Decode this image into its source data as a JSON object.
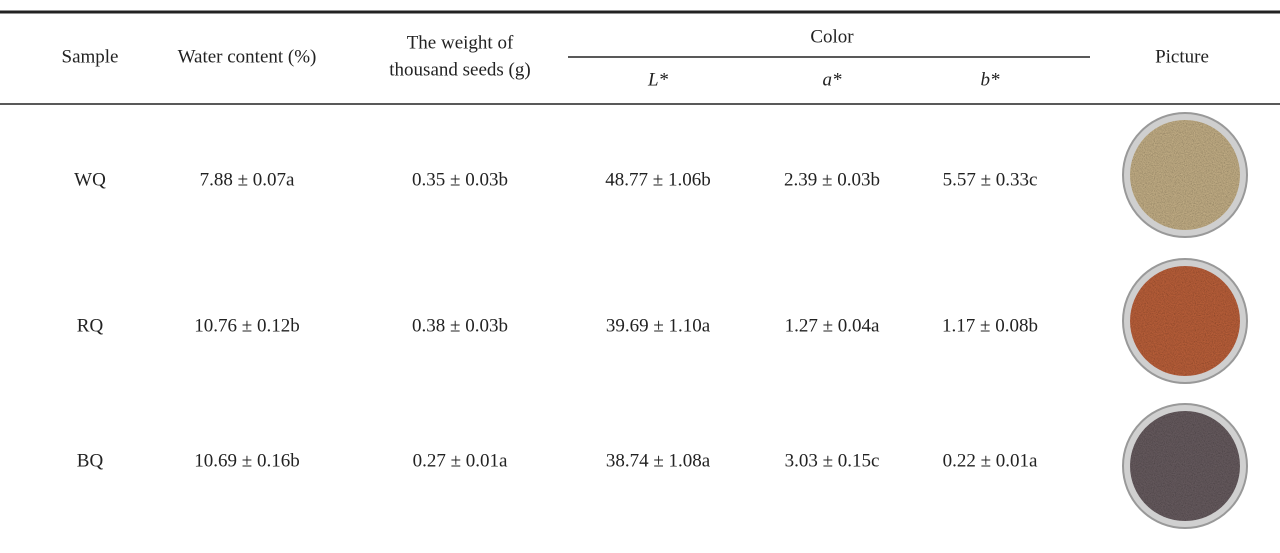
{
  "header": {
    "sample": "Sample",
    "water": "Water content (%)",
    "weight": [
      "The weight of",
      "thousand seeds (g)"
    ],
    "color": "Color",
    "color_columns": [
      "L*",
      "a*",
      "b*"
    ],
    "picture": "Picture"
  },
  "table": {
    "rows": [
      [
        "WQ",
        "7.88 ± 0.07a",
        "0.35 ± 0.03b",
        "48.77 ± 1.06b",
        "2.39 ± 0.03b",
        "5.57 ± 0.33c"
      ],
      [
        "RQ",
        "10.76 ± 0.12b",
        "0.38 ± 0.03b",
        "39.69 ± 1.10a",
        "1.27 ± 0.04a",
        "1.17 ± 0.08b"
      ],
      [
        "BQ",
        "10.69 ± 0.16b",
        "0.27 ± 0.01a",
        "38.74 ± 1.08a",
        "3.03 ± 0.15c",
        "0.22 ± 0.01a"
      ]
    ]
  }
}
